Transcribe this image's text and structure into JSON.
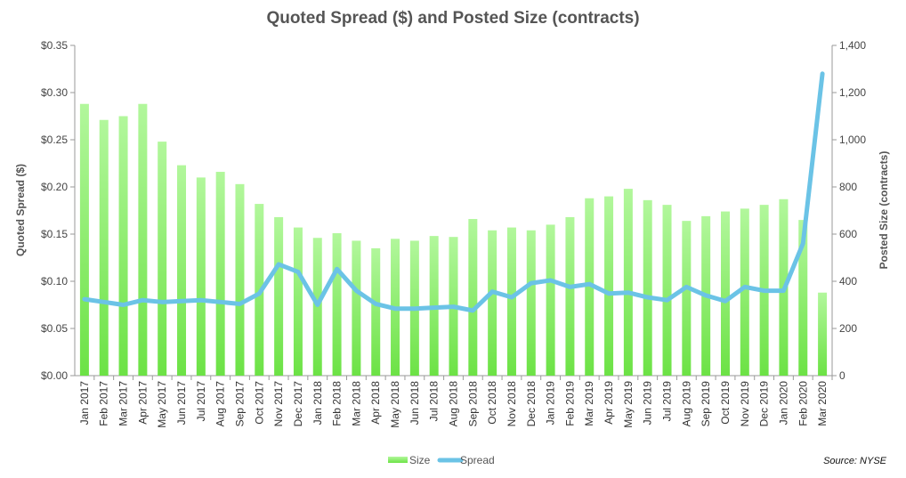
{
  "chart_data": {
    "type": "bar",
    "title": "Quoted Spread ($) and Posted Size (contracts)",
    "ylabel": "Quoted Spread ($)",
    "y2label": "Posted Size (contracts)",
    "ylim": [
      0,
      0.35
    ],
    "y2lim": [
      0,
      1400
    ],
    "yticks": [
      "$0.00",
      "$0.05",
      "$0.10",
      "$0.15",
      "$0.20",
      "$0.25",
      "$0.30",
      "$0.35"
    ],
    "y2ticks": [
      "0",
      "200",
      "400",
      "600",
      "800",
      "1,000",
      "1,200",
      "1,400"
    ],
    "categories": [
      "Jan 2017",
      "Feb 2017",
      "Mar 2017",
      "Apr 2017",
      "May 2017",
      "Jun 2017",
      "Jul 2017",
      "Aug 2017",
      "Sep 2017",
      "Oct 2017",
      "Nov 2017",
      "Dec 2017",
      "Jan 2018",
      "Feb 2018",
      "Mar 2018",
      "Apr 2018",
      "May 2018",
      "Jun 2018",
      "Jul 2018",
      "Aug 2018",
      "Sep 2018",
      "Oct 2018",
      "Nov 2018",
      "Dec 2018",
      "Jan 2019",
      "Feb 2019",
      "Mar 2019",
      "Apr 2019",
      "May 2019",
      "Jun 2019",
      "Jul 2019",
      "Aug 2019",
      "Sep 2019",
      "Oct 2019",
      "Nov 2019",
      "Dec 2019",
      "Jan 2020",
      "Feb 2020",
      "Mar 2020"
    ],
    "series": [
      {
        "name": "Size",
        "type": "bar",
        "axis": "right",
        "color": "#7ee85a",
        "values": [
          1152,
          1084,
          1100,
          1152,
          992,
          892,
          840,
          864,
          812,
          728,
          672,
          628,
          584,
          604,
          572,
          540,
          580,
          572,
          592,
          588,
          664,
          616,
          628,
          616,
          640,
          672,
          752,
          760,
          792,
          744,
          724,
          656,
          676,
          696,
          708,
          724,
          748,
          660,
          352
        ]
      },
      {
        "name": "Spread",
        "type": "line",
        "axis": "left",
        "color": "#6bc3e6",
        "values": [
          0.081,
          0.078,
          0.075,
          0.08,
          0.078,
          0.079,
          0.08,
          0.078,
          0.076,
          0.087,
          0.118,
          0.11,
          0.075,
          0.113,
          0.09,
          0.076,
          0.071,
          0.071,
          0.072,
          0.073,
          0.069,
          0.089,
          0.083,
          0.098,
          0.101,
          0.094,
          0.097,
          0.087,
          0.088,
          0.083,
          0.08,
          0.094,
          0.085,
          0.079,
          0.094,
          0.09,
          0.09,
          0.14,
          0.32
        ]
      }
    ],
    "legend": "bottom",
    "source": "Source: NYSE"
  }
}
